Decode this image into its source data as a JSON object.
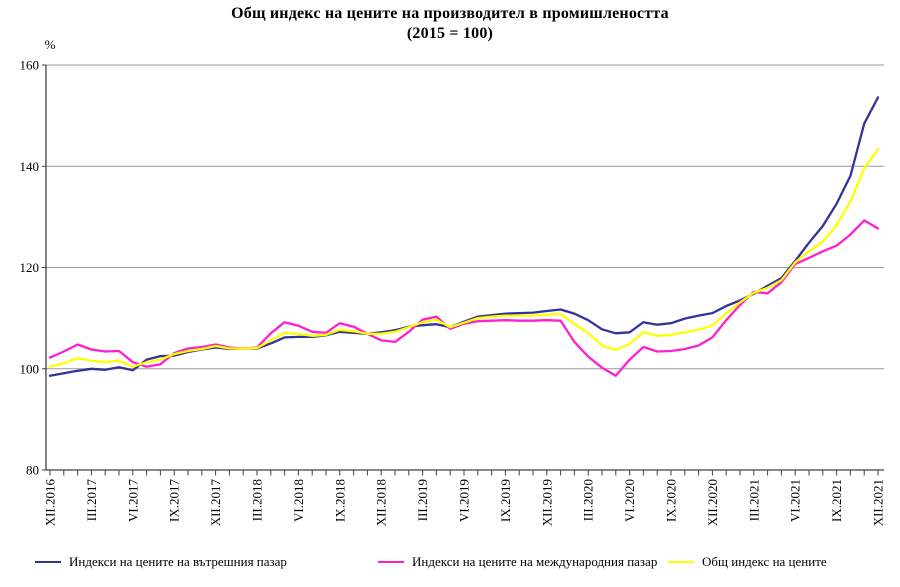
{
  "title": {
    "line1": "Общ индекс на цените на производител в промишлеността",
    "line2": "(2015 = 100)"
  },
  "y_axis": {
    "unit_label": "%",
    "tick_labels": [
      "80",
      "100",
      "120",
      "140",
      "160"
    ],
    "min": 80,
    "max": 160
  },
  "x_axis": {
    "tick_labels": [
      "XII.2016",
      "III.2017",
      "VI.2017",
      "IX.2017",
      "XII.2017",
      "III.2018",
      "VI.2018",
      "IX.2018",
      "XII.2018",
      "III.2019",
      "VI.2019",
      "IX.2019",
      "XII.2019",
      "III.2020",
      "VI.2020",
      "IX.2020",
      "XII.2020",
      "III.2021",
      "VI.2021",
      "IX.2021",
      "XII.2021"
    ],
    "label_every_n_months": 3
  },
  "legend": [
    {
      "label": "Индекси на цените на вътрешния пазар",
      "color": "#333399"
    },
    {
      "label": "Индекси на цените на международния пазар",
      "color": "#FF1FCE"
    },
    {
      "label": "Общ индекс на цените",
      "color": "#FFFF00"
    }
  ],
  "colors": {
    "domestic": "#333399",
    "international": "#FF1FCE",
    "overall": "#FFFF00",
    "gridline": "#9a9a9a",
    "axis": "#404040",
    "text": "#000000"
  },
  "chart_data": {
    "type": "line",
    "title": "Общ индекс на цените на производител в промишлеността (2015 = 100)",
    "ylabel": "%",
    "ylim": [
      80,
      160
    ],
    "y_gridlines": [
      100,
      120,
      140,
      160
    ],
    "grid": "horizontal only",
    "legend_position": "bottom",
    "x_frequency": "monthly",
    "categories": [
      "XII.2016",
      "I.2017",
      "II.2017",
      "III.2017",
      "IV.2017",
      "V.2017",
      "VI.2017",
      "VII.2017",
      "VIII.2017",
      "IX.2017",
      "X.2017",
      "XI.2017",
      "XII.2017",
      "I.2018",
      "II.2018",
      "III.2018",
      "IV.2018",
      "V.2018",
      "VI.2018",
      "VII.2018",
      "VIII.2018",
      "IX.2018",
      "X.2018",
      "XI.2018",
      "XII.2018",
      "I.2019",
      "II.2019",
      "III.2019",
      "IV.2019",
      "V.2019",
      "VI.2019",
      "VII.2019",
      "VIII.2019",
      "IX.2019",
      "X.2019",
      "XI.2019",
      "XII.2019",
      "I.2020",
      "II.2020",
      "III.2020",
      "IV.2020",
      "V.2020",
      "VI.2020",
      "VII.2020",
      "VIII.2020",
      "IX.2020",
      "X.2020",
      "XI.2020",
      "XII.2020",
      "I.2021",
      "II.2021",
      "III.2021",
      "IV.2021",
      "V.2021",
      "VI.2021",
      "VII.2021",
      "VIII.2021",
      "IX.2021",
      "X.2021",
      "XI.2021",
      "XII.2021"
    ],
    "series": [
      {
        "name": "Индекси на цените на вътрешния пазар",
        "color": "#333399",
        "values": [
          98.6,
          99.1,
          99.6,
          100.0,
          99.8,
          100.3,
          99.7,
          101.8,
          102.5,
          102.6,
          103.3,
          103.8,
          104.2,
          103.9,
          104.0,
          104.0,
          105.0,
          106.2,
          106.3,
          106.3,
          106.6,
          107.3,
          107.1,
          106.9,
          107.2,
          107.6,
          108.3,
          108.6,
          108.8,
          108.2,
          109.3,
          110.3,
          110.6,
          110.9,
          111.0,
          111.1,
          111.4,
          111.7,
          110.9,
          109.6,
          107.8,
          107.0,
          107.2,
          109.2,
          108.7,
          109.0,
          109.9,
          110.5,
          111.0,
          112.4,
          113.5,
          114.8,
          116.4,
          117.9,
          121.3,
          124.9,
          128.2,
          132.6,
          138.1,
          148.4,
          153.6
        ]
      },
      {
        "name": "Индекси на цените на международния пазар",
        "color": "#FF1FCE",
        "values": [
          102.2,
          103.4,
          104.8,
          103.8,
          103.4,
          103.5,
          101.3,
          100.4,
          100.9,
          103.1,
          104.0,
          104.3,
          104.8,
          104.2,
          104.0,
          104.2,
          107.0,
          109.2,
          108.5,
          107.3,
          107.1,
          109.0,
          108.3,
          106.9,
          105.6,
          105.3,
          107.3,
          109.7,
          110.3,
          107.9,
          108.9,
          109.4,
          109.5,
          109.6,
          109.5,
          109.5,
          109.6,
          109.5,
          105.3,
          102.4,
          100.2,
          98.6,
          101.8,
          104.3,
          103.4,
          103.5,
          103.9,
          104.6,
          106.2,
          109.6,
          112.6,
          115.2,
          114.9,
          117.1,
          120.7,
          121.9,
          123.2,
          124.3,
          126.5,
          129.3,
          127.7
        ]
      },
      {
        "name": "Общ индекс на цените",
        "color": "#FFFF00",
        "values": [
          100.4,
          101.1,
          102.1,
          101.6,
          101.3,
          101.6,
          100.4,
          101.3,
          101.8,
          102.9,
          103.5,
          103.9,
          104.5,
          104.0,
          104.0,
          104.1,
          105.6,
          107.1,
          106.9,
          106.5,
          106.7,
          107.7,
          107.4,
          106.9,
          106.9,
          107.3,
          108.2,
          109.2,
          109.7,
          108.2,
          109.1,
          110.0,
          110.3,
          110.5,
          110.5,
          110.5,
          110.7,
          110.8,
          108.9,
          107.0,
          104.6,
          103.7,
          104.9,
          107.2,
          106.5,
          106.7,
          107.2,
          107.7,
          108.6,
          110.9,
          113.1,
          115.0,
          116.0,
          117.5,
          121.0,
          123.2,
          125.1,
          128.4,
          133.0,
          139.6,
          143.4
        ]
      }
    ]
  }
}
